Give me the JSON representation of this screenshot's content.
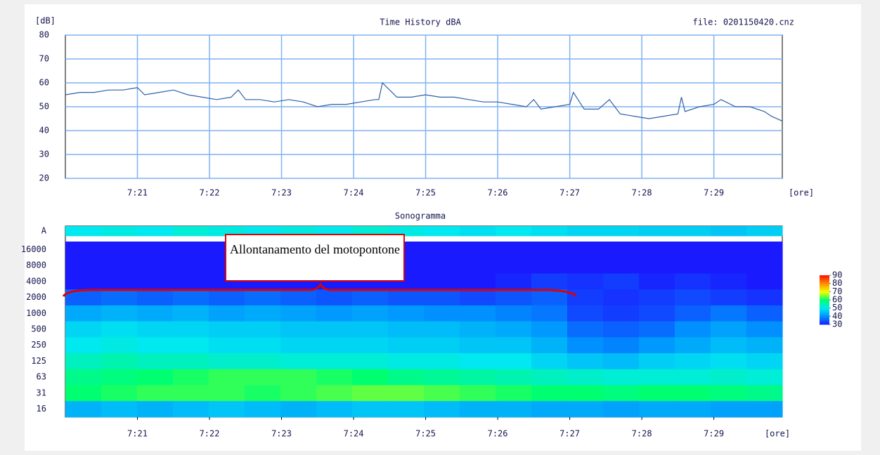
{
  "chart_data": [
    {
      "type": "line",
      "title": "Time History dBA",
      "ylabel": "[dB]",
      "xlabel": "[ore]",
      "annotation": "file: 0201150420.cnz",
      "color": "#2f5fa8",
      "grid": true,
      "grid_color": "#7fb2f0",
      "xlim": [
        440,
        449.95
      ],
      "ylim": [
        20,
        80
      ],
      "xticks": [
        {
          "value": 441,
          "label": "7:21"
        },
        {
          "value": 442,
          "label": "7:22"
        },
        {
          "value": 443,
          "label": "7:23"
        },
        {
          "value": 444,
          "label": "7:24"
        },
        {
          "value": 445,
          "label": "7:25"
        },
        {
          "value": 446,
          "label": "7:26"
        },
        {
          "value": 447,
          "label": "7:27"
        },
        {
          "value": 448,
          "label": "7:28"
        },
        {
          "value": 449,
          "label": "7:29"
        }
      ],
      "yticks": [
        20,
        30,
        40,
        50,
        60,
        70,
        80
      ],
      "x": [
        440.0,
        440.2,
        440.4,
        440.6,
        440.8,
        441.0,
        441.1,
        441.3,
        441.5,
        441.7,
        441.9,
        442.1,
        442.3,
        442.4,
        442.5,
        442.7,
        442.9,
        443.1,
        443.3,
        443.5,
        443.7,
        443.9,
        444.1,
        444.3,
        444.35,
        444.4,
        444.6,
        444.8,
        445.0,
        445.2,
        445.4,
        445.6,
        445.8,
        446.0,
        446.2,
        446.4,
        446.5,
        446.6,
        446.8,
        447.0,
        447.05,
        447.2,
        447.4,
        447.55,
        447.7,
        447.9,
        448.1,
        448.3,
        448.5,
        448.55,
        448.6,
        448.8,
        449.0,
        449.1,
        449.3,
        449.5,
        449.7,
        449.8,
        449.95
      ],
      "values": [
        55,
        56,
        56,
        57,
        57,
        58,
        55,
        56,
        57,
        55,
        54,
        53,
        54,
        57,
        53,
        53,
        52,
        53,
        52,
        50,
        51,
        51,
        52,
        53,
        53,
        60,
        54,
        54,
        55,
        54,
        54,
        53,
        52,
        52,
        51,
        50,
        53,
        49,
        50,
        51,
        56,
        49,
        49,
        53,
        47,
        46,
        45,
        46,
        47,
        54,
        48,
        50,
        51,
        53,
        50,
        50,
        48,
        46,
        44
      ]
    },
    {
      "type": "heatmap",
      "title": "Sonogramma",
      "xlabel": "[ore]",
      "annotation": "Allontanamento del motopontone",
      "xlim": [
        440,
        449.95
      ],
      "xticks": [
        {
          "value": 441,
          "label": "7:21"
        },
        {
          "value": 442,
          "label": "7:22"
        },
        {
          "value": 443,
          "label": "7:23"
        },
        {
          "value": 444,
          "label": "7:24"
        },
        {
          "value": 445,
          "label": "7:25"
        },
        {
          "value": 446,
          "label": "7:26"
        },
        {
          "value": 447,
          "label": "7:27"
        },
        {
          "value": 448,
          "label": "7:28"
        },
        {
          "value": 449,
          "label": "7:29"
        }
      ],
      "categories": [
        "A",
        "16000",
        "8000",
        "4000",
        "2000",
        "1000",
        "500",
        "250",
        "125",
        "63",
        "31",
        "16"
      ],
      "x": [
        440.25,
        440.75,
        441.25,
        441.75,
        442.25,
        442.75,
        443.25,
        443.75,
        444.25,
        444.75,
        445.25,
        445.75,
        446.25,
        446.75,
        447.25,
        447.75,
        448.25,
        448.75,
        449.25,
        449.75
      ],
      "z": [
        [
          50,
          51,
          50,
          52,
          51,
          50,
          51,
          50,
          52,
          51,
          50,
          49,
          50,
          49,
          48,
          48,
          47,
          47,
          46,
          47
        ],
        [
          30,
          30,
          30,
          30,
          30,
          30,
          30,
          30,
          30,
          30,
          30,
          30,
          30,
          30,
          30,
          30,
          30,
          30,
          30,
          30
        ],
        [
          30,
          30,
          30,
          30,
          30,
          30,
          30,
          30,
          30,
          30,
          30,
          30,
          30,
          30,
          30,
          30,
          30,
          30,
          30,
          30
        ],
        [
          30,
          30,
          30,
          30,
          30,
          30,
          30,
          30,
          30,
          30,
          30,
          30,
          31,
          33,
          32,
          33,
          31,
          32,
          31,
          30
        ],
        [
          36,
          37,
          36,
          37,
          36,
          37,
          36,
          35,
          36,
          35,
          35,
          34,
          35,
          36,
          33,
          32,
          33,
          34,
          33,
          32
        ],
        [
          43,
          44,
          43,
          44,
          42,
          43,
          42,
          41,
          42,
          41,
          40,
          40,
          39,
          38,
          34,
          33,
          34,
          36,
          38,
          36
        ],
        [
          48,
          49,
          48,
          48,
          47,
          47,
          46,
          46,
          46,
          45,
          45,
          44,
          43,
          41,
          37,
          36,
          37,
          40,
          42,
          40
        ],
        [
          50,
          51,
          50,
          50,
          49,
          49,
          48,
          48,
          48,
          47,
          47,
          46,
          46,
          44,
          40,
          39,
          41,
          43,
          45,
          44
        ],
        [
          54,
          55,
          54,
          54,
          53,
          53,
          52,
          52,
          52,
          51,
          51,
          50,
          50,
          48,
          46,
          45,
          47,
          48,
          49,
          48
        ],
        [
          58,
          59,
          60,
          61,
          62,
          62,
          62,
          61,
          60,
          58,
          57,
          56,
          55,
          54,
          53,
          52,
          52,
          52,
          53,
          52
        ],
        [
          60,
          61,
          62,
          62,
          62,
          61,
          62,
          63,
          64,
          64,
          63,
          62,
          61,
          60,
          60,
          59,
          60,
          60,
          59,
          58
        ],
        [
          44,
          45,
          44,
          45,
          46,
          45,
          44,
          45,
          46,
          46,
          45,
          44,
          44,
          43,
          43,
          42,
          43,
          43,
          42,
          42
        ]
      ],
      "clim": [
        30,
        90
      ],
      "cticks": [
        30,
        40,
        50,
        60,
        70,
        80,
        90
      ],
      "colorscale": [
        "#1a1aff",
        "#0090ff",
        "#00e8f0",
        "#00ff70",
        "#f0ff00",
        "#ff9000",
        "#ff1000"
      ]
    }
  ]
}
